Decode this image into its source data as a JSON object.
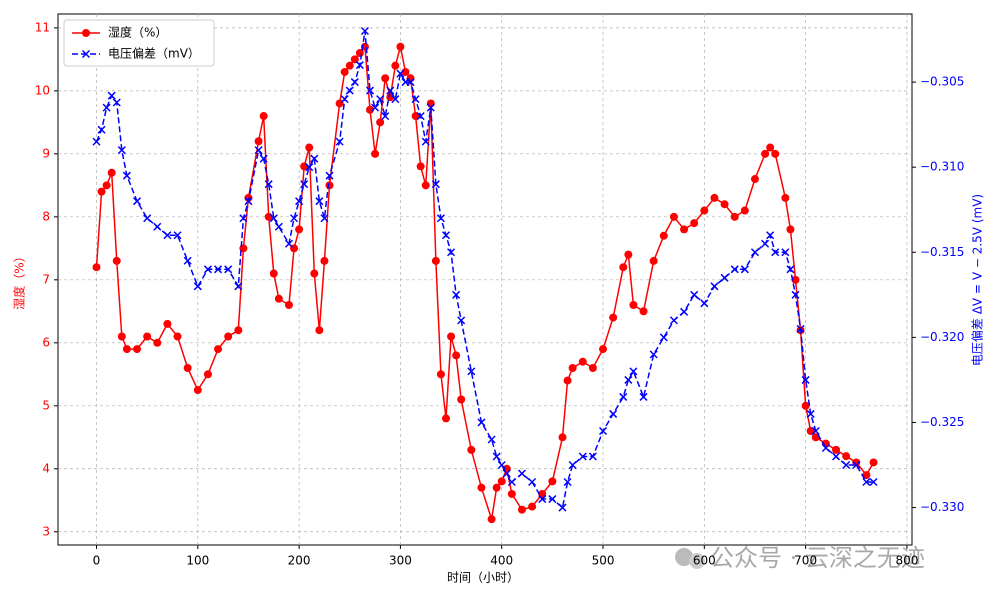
{
  "chart_data": {
    "type": "line",
    "x_label": "时间（小时）",
    "y_label": "湿度（%）",
    "y2_label": "电压偏差  ΔV = V − 2.5V (mV)",
    "annotation": "公众号 · 云深之无迹",
    "x": [
      0,
      5,
      10,
      15,
      20,
      25,
      30,
      40,
      50,
      60,
      70,
      80,
      90,
      100,
      110,
      120,
      130,
      140,
      145,
      150,
      160,
      165,
      170,
      175,
      180,
      190,
      195,
      200,
      205,
      210,
      215,
      220,
      225,
      230,
      240,
      245,
      250,
      255,
      260,
      265,
      270,
      275,
      280,
      285,
      290,
      295,
      300,
      305,
      310,
      315,
      320,
      325,
      330,
      335,
      340,
      345,
      350,
      355,
      360,
      370,
      380,
      390,
      395,
      400,
      405,
      410,
      420,
      430,
      440,
      450,
      460,
      465,
      470,
      480,
      490,
      500,
      510,
      520,
      525,
      530,
      540,
      550,
      560,
      570,
      580,
      590,
      600,
      610,
      620,
      630,
      640,
      650,
      660,
      665,
      670,
      680,
      685,
      690,
      695,
      700,
      705,
      710,
      720,
      730,
      740,
      750,
      760,
      767
    ],
    "series": [
      {
        "name": "湿度（%）",
        "color": "#ff0000",
        "marker": "o",
        "linestyle": "solid",
        "values": [
          7.2,
          8.4,
          8.5,
          8.7,
          7.3,
          6.1,
          5.9,
          5.9,
          6.1,
          6.0,
          6.3,
          6.1,
          5.6,
          5.25,
          5.5,
          5.9,
          6.1,
          6.2,
          7.5,
          8.3,
          9.2,
          9.6,
          8.0,
          7.1,
          6.7,
          6.6,
          7.5,
          7.8,
          8.8,
          9.1,
          7.1,
          6.2,
          7.3,
          8.5,
          9.8,
          10.3,
          10.4,
          10.5,
          10.6,
          10.7,
          9.7,
          9.0,
          9.5,
          10.2,
          9.9,
          10.4,
          10.7,
          10.3,
          10.2,
          9.6,
          8.8,
          8.5,
          9.8,
          7.3,
          5.5,
          4.8,
          6.1,
          5.8,
          5.1,
          4.3,
          3.7,
          3.2,
          3.7,
          3.8,
          4.0,
          3.6,
          3.35,
          3.4,
          3.6,
          3.8,
          4.5,
          5.4,
          5.6,
          5.7,
          5.6,
          5.9,
          6.4,
          7.2,
          7.4,
          6.6,
          6.5,
          7.3,
          7.7,
          8.0,
          7.8,
          7.9,
          8.1,
          8.3,
          8.2,
          8.0,
          8.1,
          8.6,
          9.0,
          9.1,
          9.0,
          8.3,
          7.8,
          7.0,
          6.2,
          5.0,
          4.6,
          4.5,
          4.4,
          4.3,
          4.2,
          4.1,
          3.9,
          4.1
        ]
      },
      {
        "name": "电压偏差（mV）",
        "color": "#0000ff",
        "marker": "x",
        "linestyle": "dashed",
        "axis": "y2",
        "values": [
          -0.3085,
          -0.3078,
          -0.3065,
          -0.3058,
          -0.3062,
          -0.309,
          -0.3105,
          -0.312,
          -0.313,
          -0.3135,
          -0.314,
          -0.314,
          -0.3155,
          -0.317,
          -0.316,
          -0.316,
          -0.316,
          -0.317,
          -0.313,
          -0.312,
          -0.309,
          -0.3095,
          -0.311,
          -0.313,
          -0.3135,
          -0.3145,
          -0.313,
          -0.312,
          -0.311,
          -0.31,
          -0.3095,
          -0.312,
          -0.313,
          -0.3105,
          -0.3085,
          -0.306,
          -0.3055,
          -0.305,
          -0.304,
          -0.302,
          -0.3055,
          -0.3065,
          -0.306,
          -0.307,
          -0.3055,
          -0.306,
          -0.3045,
          -0.305,
          -0.305,
          -0.306,
          -0.307,
          -0.3085,
          -0.3065,
          -0.311,
          -0.313,
          -0.314,
          -0.315,
          -0.3175,
          -0.319,
          -0.322,
          -0.325,
          -0.326,
          -0.327,
          -0.3275,
          -0.328,
          -0.3285,
          -0.328,
          -0.3285,
          -0.3295,
          -0.3295,
          -0.33,
          -0.3285,
          -0.3275,
          -0.327,
          -0.327,
          -0.3255,
          -0.3245,
          -0.3235,
          -0.3225,
          -0.322,
          -0.3235,
          -0.321,
          -0.32,
          -0.319,
          -0.3185,
          -0.3175,
          -0.318,
          -0.317,
          -0.3165,
          -0.316,
          -0.316,
          -0.315,
          -0.3145,
          -0.314,
          -0.315,
          -0.315,
          -0.316,
          -0.3175,
          -0.3195,
          -0.3225,
          -0.3245,
          -0.3255,
          -0.3265,
          -0.327,
          -0.3275,
          -0.3275,
          -0.3285,
          -0.3285
        ]
      }
    ],
    "xlim": [
      -38,
      805
    ],
    "xticks": [
      0,
      100,
      200,
      300,
      400,
      500,
      600,
      700,
      800
    ],
    "ylim": [
      2.79,
      11.22
    ],
    "yticks": [
      3,
      4,
      5,
      6,
      7,
      8,
      9,
      10,
      11
    ],
    "y2lim": [
      -0.3322,
      -0.301
    ],
    "y2ticks": [
      {
        "value": -0.305,
        "label": "−0.305"
      },
      {
        "value": -0.31,
        "label": "−0.310"
      },
      {
        "value": -0.315,
        "label": "−0.315"
      },
      {
        "value": -0.32,
        "label": "−0.320"
      },
      {
        "value": -0.325,
        "label": "−0.325"
      },
      {
        "value": -0.33,
        "label": "−0.330"
      }
    ],
    "grid": true,
    "legend": "upper left"
  }
}
